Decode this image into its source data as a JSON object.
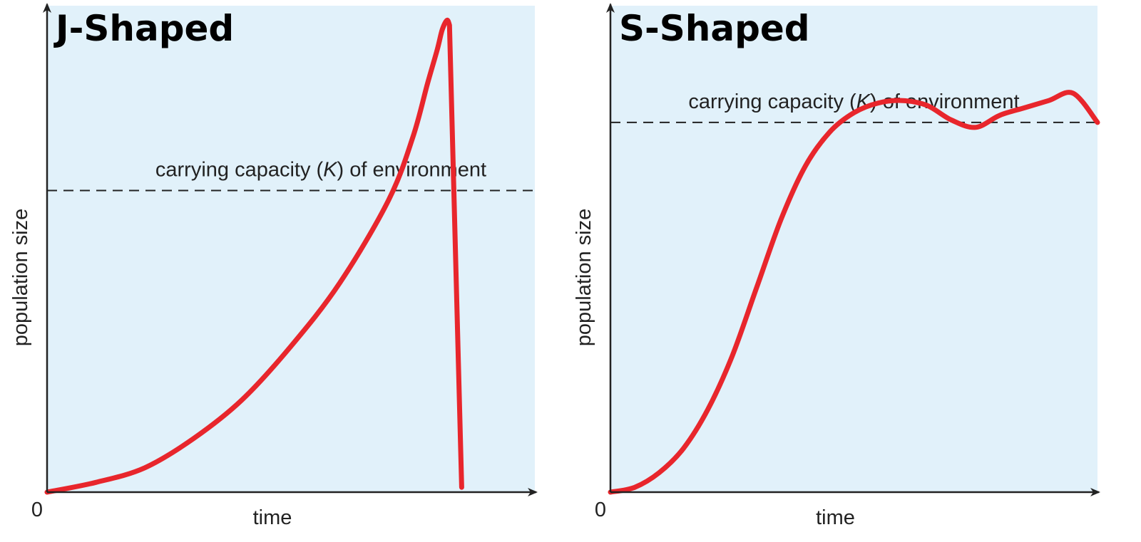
{
  "colors": {
    "plot_background": "#e1f1fa",
    "curve": "#e8262c",
    "axis": "#222222",
    "dashed_line": "#222222"
  },
  "chart_data": [
    {
      "type": "line",
      "title": "J-Shaped",
      "xlabel": "time",
      "ylabel": "population size",
      "origin_label": "0",
      "x_ticks_numbered": false,
      "y_ticks_numbered": false,
      "xlim": [
        0,
        100
      ],
      "ylim": [
        0,
        100
      ],
      "grid": false,
      "reference_line": {
        "label_before": "carrying capacity (",
        "label_italic": "K",
        "label_after": ") of environment",
        "y": 62,
        "style": "dashed"
      },
      "series": [
        {
          "x": [
            0,
            10,
            20,
            30,
            40,
            50,
            60,
            70,
            75,
            78,
            80,
            81,
            82,
            82.5,
            83,
            84,
            85
          ],
          "y": [
            0,
            2,
            5,
            11,
            19,
            30,
            43,
            60,
            73,
            84,
            91,
            95,
            97,
            96,
            72,
            36,
            1
          ]
        }
      ]
    },
    {
      "type": "line",
      "title": "S-Shaped",
      "xlabel": "time",
      "ylabel": "population size",
      "origin_label": "0",
      "x_ticks_numbered": false,
      "y_ticks_numbered": false,
      "xlim": [
        0,
        100
      ],
      "ylim": [
        0,
        100
      ],
      "grid": false,
      "reference_line": {
        "label_before": "carrying capacity (",
        "label_italic": "K",
        "label_after": ") of environment",
        "y": 76,
        "style": "dashed"
      },
      "series": [
        {
          "x": [
            0,
            5,
            10,
            15,
            20,
            25,
            30,
            35,
            40,
            45,
            50,
            55,
            60,
            65,
            70,
            75,
            80,
            85,
            90,
            95,
            100
          ],
          "y": [
            0,
            1,
            4,
            9,
            17,
            28,
            42,
            56,
            67,
            74,
            78,
            80,
            80.5,
            79.5,
            76.5,
            75,
            77.5,
            79,
            80.5,
            82,
            76
          ]
        }
      ]
    }
  ]
}
